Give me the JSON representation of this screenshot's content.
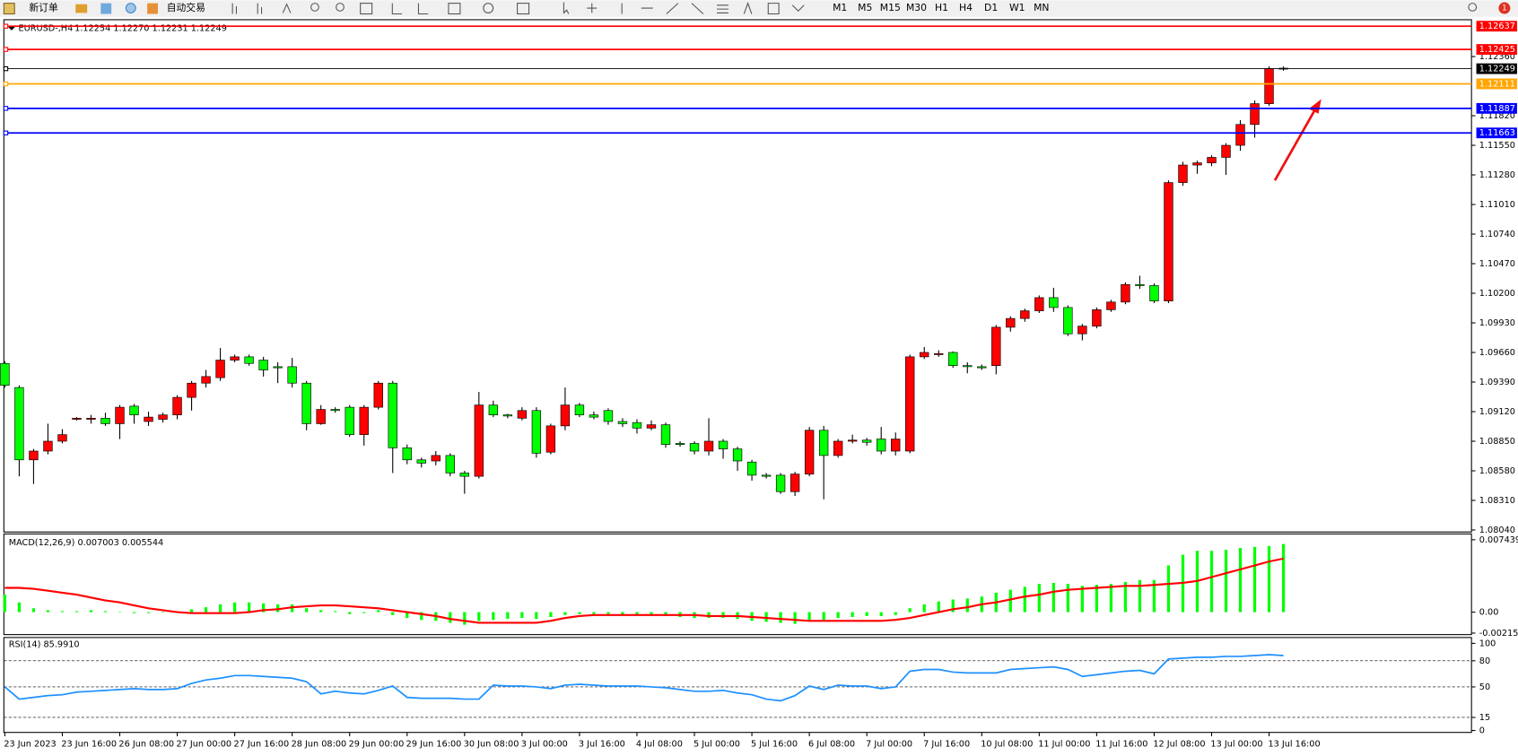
{
  "toolbar": {
    "new_order": "新订单",
    "auto_trading": "自动交易",
    "timeframes": [
      "M1",
      "M5",
      "M15",
      "M30",
      "H1",
      "H4",
      "D1",
      "W1",
      "MN"
    ],
    "badge": "1"
  },
  "chart_data": [
    {
      "type": "candlestick",
      "title": "EURUSD-,H4",
      "subtitle": "1.12254 1.12270 1.12231 1.12249",
      "categories": [
        "23 Jun 2023",
        null,
        null,
        null,
        "23 Jun 16:00",
        null,
        null,
        null,
        "26 Jun 08:00",
        null,
        null,
        null,
        "27 Jun 00:00",
        null,
        null,
        null,
        "27 Jun 16:00",
        null,
        null,
        null,
        "28 Jun 08:00",
        null,
        null,
        null,
        "29 Jun 00:00",
        null,
        null,
        null,
        "29 Jun 16:00",
        null,
        null,
        null,
        "30 Jun 08:00",
        null,
        null,
        null,
        "3 Jul 00:00",
        null,
        null,
        null,
        "3 Jul 16:00",
        null,
        null,
        null,
        "4 Jul 08:00",
        null,
        null,
        null,
        "5 Jul 00:00",
        null,
        null,
        null,
        "5 Jul 16:00",
        null,
        null,
        null,
        "6 Jul 08:00",
        null,
        null,
        null,
        "7 Jul 00:00",
        null,
        null,
        null,
        "7 Jul 16:00",
        null,
        null,
        null,
        "10 Jul 08:00",
        null,
        null,
        null,
        "11 Jul 00:00",
        null,
        null,
        null,
        "11 Jul 16:00",
        null,
        null,
        null,
        "12 Jul 08:00",
        null,
        null,
        null,
        "13 Jul 00:00",
        null,
        null,
        null,
        "13 Jul 16:00",
        null
      ],
      "open": [
        1.0956,
        1.0934,
        1.0868,
        1.0876,
        1.0885,
        1.0905,
        1.0905,
        1.0906,
        1.0901,
        1.0917,
        1.0903,
        1.0905,
        1.0909,
        1.0925,
        1.0938,
        1.0943,
        1.0959,
        1.0962,
        1.0959,
        1.0953,
        1.0953,
        1.0938,
        1.0901,
        1.0914,
        1.0916,
        1.0891,
        1.0916,
        1.0938,
        1.0879,
        1.0868,
        1.0867,
        1.0872,
        1.0856,
        1.0853,
        1.0918,
        1.0909,
        1.0906,
        1.0913,
        1.0875,
        1.0899,
        1.0918,
        1.0909,
        1.0913,
        1.0903,
        1.0902,
        1.0897,
        1.09,
        1.0883,
        1.0883,
        1.0876,
        1.0885,
        1.0878,
        1.0866,
        1.0854,
        1.0854,
        1.0839,
        1.0855,
        1.0895,
        1.0872,
        1.0885,
        1.0886,
        1.0887,
        1.0876,
        1.0876,
        1.0962,
        1.0964,
        1.0966,
        1.0954,
        1.0953,
        1.0954,
        1.0989,
        1.0997,
        1.1004,
        1.1016,
        1.1007,
        1.0983,
        1.099,
        1.1005,
        1.1012,
        1.1028,
        1.1027,
        1.1013,
        1.1121,
        1.1137,
        1.1139,
        1.1144,
        1.1155,
        1.1174,
        1.1193,
        1.12254
      ],
      "high": [
        1.0958,
        1.0936,
        1.0878,
        1.0901,
        1.0896,
        1.0907,
        1.0909,
        1.0911,
        1.0918,
        1.0919,
        1.0912,
        1.0911,
        1.0927,
        1.094,
        1.095,
        1.097,
        1.0964,
        1.0964,
        1.0962,
        1.0957,
        1.0961,
        1.094,
        1.0918,
        1.0916,
        1.0918,
        1.0918,
        1.094,
        1.094,
        1.0882,
        1.087,
        1.0876,
        1.0874,
        1.0858,
        1.093,
        1.0922,
        1.091,
        1.0916,
        1.0916,
        1.0901,
        1.0934,
        1.092,
        1.0912,
        1.0915,
        1.0906,
        1.0905,
        1.0904,
        1.0902,
        1.0885,
        1.0885,
        1.0906,
        1.0887,
        1.088,
        1.0868,
        1.0856,
        1.0856,
        1.0857,
        1.0898,
        1.0899,
        1.0887,
        1.0891,
        1.0888,
        1.0898,
        1.0893,
        1.0964,
        1.0971,
        1.0968,
        1.0967,
        1.0957,
        1.0955,
        1.0991,
        1.0999,
        1.1006,
        1.1018,
        1.1025,
        1.1009,
        1.0992,
        1.1007,
        1.1014,
        1.103,
        1.1036,
        1.1029,
        1.1123,
        1.114,
        1.1141,
        1.1146,
        1.1157,
        1.1178,
        1.1196,
        1.1227,
        1.1227
      ],
      "low": [
        1.0934,
        1.0853,
        1.0846,
        1.0873,
        1.0883,
        1.0904,
        1.0901,
        1.0899,
        1.0887,
        1.0901,
        1.0899,
        1.0902,
        1.0905,
        1.0913,
        1.0934,
        1.094,
        1.0957,
        1.0954,
        1.0944,
        1.0938,
        1.0934,
        1.0895,
        1.09,
        1.0911,
        1.0889,
        1.0881,
        1.0914,
        1.0856,
        1.0864,
        1.0861,
        1.0863,
        1.0853,
        1.0837,
        1.0851,
        1.0907,
        1.0906,
        1.0904,
        1.087,
        1.0873,
        1.0895,
        1.0907,
        1.0905,
        1.09,
        1.0898,
        1.0892,
        1.0895,
        1.0879,
        1.088,
        1.0873,
        1.0872,
        1.0869,
        1.0858,
        1.0849,
        1.0851,
        1.0837,
        1.0835,
        1.0853,
        1.0832,
        1.087,
        1.0883,
        1.0881,
        1.0873,
        1.0872,
        1.0874,
        1.096,
        1.0962,
        1.0952,
        1.0947,
        1.095,
        1.0946,
        1.0985,
        1.0994,
        1.1002,
        1.1003,
        1.0981,
        1.0977,
        1.0988,
        1.1003,
        1.101,
        1.1024,
        1.1011,
        1.1011,
        1.1118,
        1.1129,
        1.1136,
        1.1128,
        1.115,
        1.1162,
        1.1191,
        1.12231
      ],
      "close": [
        1.0936,
        1.0868,
        1.0876,
        1.0885,
        1.0891,
        1.0906,
        1.0906,
        1.0901,
        1.0916,
        1.0909,
        1.0907,
        1.0909,
        1.0925,
        1.0938,
        1.0944,
        1.0959,
        1.0962,
        1.0956,
        1.095,
        1.0952,
        1.0938,
        1.0901,
        1.0914,
        1.0913,
        1.0891,
        1.0916,
        1.0938,
        1.0879,
        1.0868,
        1.0865,
        1.0872,
        1.0856,
        1.0853,
        1.0918,
        1.0909,
        1.0908,
        1.0913,
        1.0874,
        1.0899,
        1.0918,
        1.0909,
        1.0907,
        1.0903,
        1.0901,
        1.0897,
        1.09,
        1.0882,
        1.0882,
        1.0876,
        1.0885,
        1.0878,
        1.0867,
        1.0854,
        1.0853,
        1.0839,
        1.0855,
        1.0895,
        1.0872,
        1.0885,
        1.0886,
        1.0884,
        1.0876,
        1.0887,
        1.0962,
        1.0966,
        1.0965,
        1.0954,
        1.0953,
        1.0952,
        1.0989,
        1.0997,
        1.1004,
        1.1016,
        1.1007,
        1.0983,
        1.099,
        1.1005,
        1.1012,
        1.1028,
        1.1027,
        1.1013,
        1.1121,
        1.1137,
        1.1139,
        1.1144,
        1.1155,
        1.1174,
        1.1193,
        1.1225,
        1.12249
      ],
      "up_color": "#ff0000",
      "down_color": "#00ff00",
      "ylim": [
        1.08022,
        1.12696
      ],
      "yticks": [
        {
          "value": 1.1236,
          "label": "1.12360"
        },
        {
          "value": 1.1182,
          "label": "1.11820"
        },
        {
          "value": 1.1155,
          "label": "1.11550"
        },
        {
          "value": 1.1128,
          "label": "1.11280"
        },
        {
          "value": 1.1101,
          "label": "1.11010"
        },
        {
          "value": 1.1074,
          "label": "1.10740"
        },
        {
          "value": 1.1047,
          "label": "1.10470"
        },
        {
          "value": 1.102,
          "label": "1.10200"
        },
        {
          "value": 1.0993,
          "label": "1.09930"
        },
        {
          "value": 1.0966,
          "label": "1.09660"
        },
        {
          "value": 1.0939,
          "label": "1.09390"
        },
        {
          "value": 1.0912,
          "label": "1.09120"
        },
        {
          "value": 1.0885,
          "label": "1.08850"
        },
        {
          "value": 1.0858,
          "label": "1.08580"
        },
        {
          "value": 1.0831,
          "label": "1.08310"
        },
        {
          "value": 1.0804,
          "label": "1.08040"
        }
      ],
      "hlines": [
        {
          "value": 1.12637,
          "color": "#ff0000"
        },
        {
          "value": 1.12425,
          "color": "#ff0000"
        },
        {
          "value": 1.12249,
          "color": "#000000"
        },
        {
          "value": 1.12111,
          "color": "#ffa500"
        },
        {
          "value": 1.11887,
          "color": "#0000ff"
        },
        {
          "value": 1.11663,
          "color": "#0000ff"
        }
      ]
    },
    {
      "type": "macd",
      "title": "MACD(12,26,9) 0.007003 0.005544",
      "histogram": {
        "color": "#00ff00",
        "values": [
          0.0018,
          0.001,
          0.0004,
          0.0002,
          0.0001,
          0.0001,
          0.0002,
          0.0001,
          0.0,
          -0.0001,
          -0.0001,
          0.0,
          0.0001,
          0.0003,
          0.0005,
          0.0008,
          0.001,
          0.001,
          0.0009,
          0.0008,
          0.0008,
          0.0004,
          0.0002,
          0.0001,
          -0.0002,
          -0.0001,
          0.0002,
          -0.0003,
          -0.0006,
          -0.0008,
          -0.0009,
          -0.0011,
          -0.0013,
          -0.0009,
          -0.0008,
          -0.0007,
          -0.0006,
          -0.0007,
          -0.0005,
          -0.0003,
          -0.0002,
          -0.0002,
          -0.0002,
          -0.0003,
          -0.0003,
          -0.0003,
          -0.0004,
          -0.0005,
          -0.0006,
          -0.0006,
          -0.0006,
          -0.0007,
          -0.0009,
          -0.001,
          -0.0011,
          -0.0012,
          -0.0008,
          -0.0008,
          -0.0006,
          -0.0005,
          -0.0004,
          -0.0004,
          -0.0003,
          0.0004,
          0.0008,
          0.0011,
          0.0013,
          0.0014,
          0.0016,
          0.002,
          0.0023,
          0.0026,
          0.0029,
          0.003,
          0.0029,
          0.0027,
          0.0028,
          0.0029,
          0.0031,
          0.0033,
          0.0033,
          0.0048,
          0.0059,
          0.0063,
          0.0063,
          0.0064,
          0.0066,
          0.0067,
          0.0068,
          0.007
        ]
      },
      "signal": {
        "color": "#ff0000",
        "values": [
          0.0025,
          0.0025,
          0.0024,
          0.0022,
          0.002,
          0.0018,
          0.0015,
          0.0012,
          0.001,
          0.0007,
          0.0004,
          0.0002,
          0.0,
          -0.0001,
          -0.0001,
          -0.0001,
          -0.0001,
          0.0,
          0.0002,
          0.0003,
          0.0005,
          0.0006,
          0.0007,
          0.0007,
          0.0006,
          0.0005,
          0.0004,
          0.0002,
          0.0,
          -0.0002,
          -0.0004,
          -0.0007,
          -0.0009,
          -0.0011,
          -0.0011,
          -0.0011,
          -0.0011,
          -0.0011,
          -0.0009,
          -0.0006,
          -0.0004,
          -0.0003,
          -0.0003,
          -0.0003,
          -0.0003,
          -0.0003,
          -0.0003,
          -0.0003,
          -0.0003,
          -0.0004,
          -0.0004,
          -0.0004,
          -0.0005,
          -0.0006,
          -0.0007,
          -0.0008,
          -0.0009,
          -0.0009,
          -0.0009,
          -0.0009,
          -0.0009,
          -0.0009,
          -0.0008,
          -0.0006,
          -0.0003,
          0.0,
          0.0003,
          0.0005,
          0.0008,
          0.001,
          0.0013,
          0.0016,
          0.0018,
          0.0021,
          0.0023,
          0.0024,
          0.0025,
          0.0026,
          0.0027,
          0.0027,
          0.0028,
          0.0029,
          0.003,
          0.0032,
          0.0036,
          0.004,
          0.0044,
          0.0048,
          0.0052,
          0.0055
        ]
      },
      "ylim": [
        -0.00231,
        0.00804
      ],
      "yticks": [
        0.007439,
        {
          "value": 0,
          "label": "0.00"
        },
        -0.002156
      ]
    },
    {
      "type": "line",
      "title": "RSI(14) 85.9910",
      "color": "#1e90ff",
      "values": [
        50,
        36,
        38,
        40,
        41,
        44,
        45,
        46,
        47,
        48,
        47,
        47,
        48,
        54,
        58,
        60,
        63,
        63,
        62,
        61,
        60,
        56,
        42,
        45,
        43,
        42,
        46,
        51,
        38,
        37,
        37,
        37,
        36,
        36,
        52,
        51,
        51,
        50,
        48,
        52,
        53,
        52,
        51,
        51,
        51,
        50,
        49,
        47,
        45,
        45,
        46,
        43,
        41,
        36,
        34,
        40,
        51,
        47,
        52,
        51,
        51,
        48,
        50,
        68,
        70,
        70,
        67,
        66,
        66,
        66,
        70,
        71,
        72,
        73,
        70,
        62,
        64,
        66,
        68,
        69,
        65,
        82,
        83,
        84,
        84,
        85,
        85,
        86,
        87,
        86
      ],
      "ylim": [
        -2.2,
        106.7
      ],
      "yticks": [
        100,
        80,
        50,
        15,
        0
      ],
      "levels": [
        80,
        50,
        15
      ]
    }
  ]
}
